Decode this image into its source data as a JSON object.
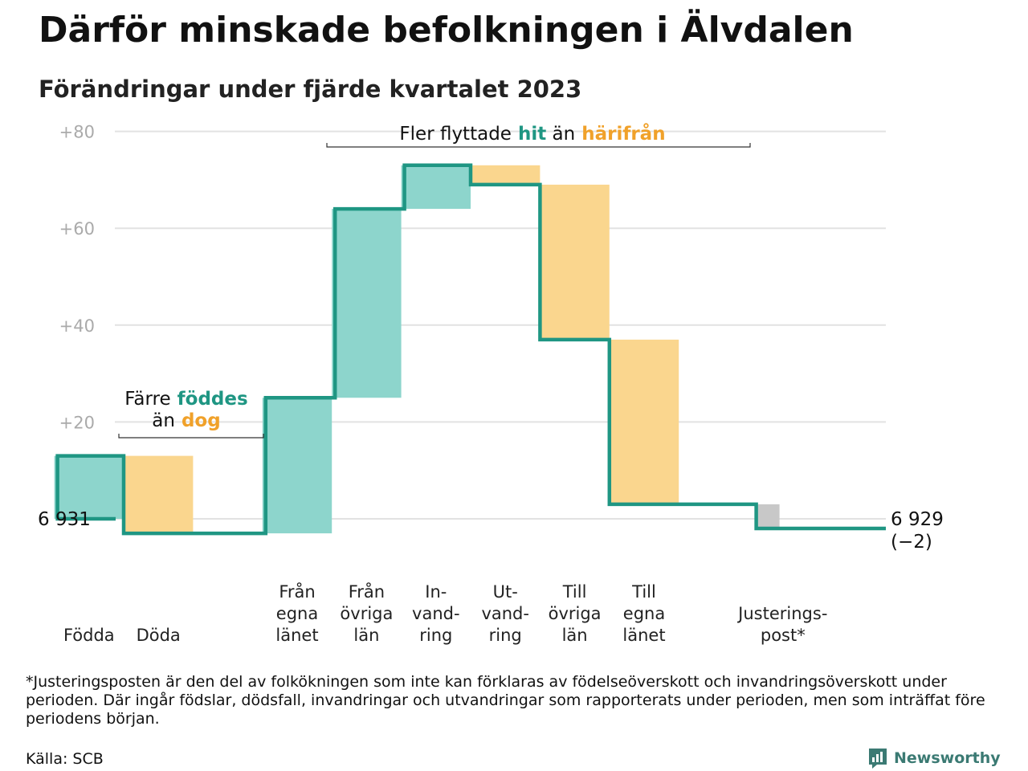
{
  "header": {
    "title": "Därför minskade befolkningen i Älvdalen",
    "subtitle": "Förändringar under fjärde kvartalet 2023"
  },
  "chart_data": {
    "type": "waterfall",
    "start_value": 6931,
    "start_label": "6  931",
    "end_value": 6929,
    "end_label": "6 929",
    "end_change_label": "(−2)",
    "ylim": [
      0,
      80
    ],
    "yticks": [
      {
        "value": 20,
        "label": "+20"
      },
      {
        "value": 40,
        "label": "+40"
      },
      {
        "value": 60,
        "label": "+60"
      },
      {
        "value": 80,
        "label": "+80"
      }
    ],
    "grid": true,
    "steps": [
      {
        "label_lines": [
          "Födda"
        ],
        "value": 13,
        "kind": "increase",
        "slot": 0
      },
      {
        "label_lines": [
          "Döda"
        ],
        "value": -16,
        "kind": "decrease",
        "slot": 1
      },
      {
        "label_lines": [
          "Från",
          "egna",
          "länet"
        ],
        "value": 28,
        "kind": "increase",
        "slot": 3
      },
      {
        "label_lines": [
          "Från",
          "övriga",
          "län"
        ],
        "value": 39,
        "kind": "increase",
        "slot": 4
      },
      {
        "label_lines": [
          "In-",
          "vand-",
          "ring"
        ],
        "value": 9,
        "kind": "increase",
        "slot": 5
      },
      {
        "label_lines": [
          "Ut-",
          "vand-",
          "ring"
        ],
        "value": -4,
        "kind": "decrease",
        "slot": 6
      },
      {
        "label_lines": [
          "Till",
          "övriga",
          "län"
        ],
        "value": -32,
        "kind": "decrease",
        "slot": 7
      },
      {
        "label_lines": [
          "Till",
          "egna",
          "länet"
        ],
        "value": -34,
        "kind": "decrease",
        "slot": 8
      },
      {
        "label_lines": [
          "Justerings-",
          "post*"
        ],
        "value": -5,
        "kind": "adjustment",
        "slot": 10
      }
    ],
    "annotations": [
      {
        "id": "births",
        "parts": [
          {
            "text": "Färre",
            "kind": "plain"
          },
          {
            "text": "föddes",
            "kind": "increase"
          },
          {
            "text": "än",
            "kind": "plain"
          },
          {
            "text": "dog",
            "kind": "decrease"
          }
        ]
      },
      {
        "id": "moves",
        "parts": [
          {
            "text": "Fler flyttade",
            "kind": "plain"
          },
          {
            "text": "hit",
            "kind": "increase"
          },
          {
            "text": "än",
            "kind": "plain"
          },
          {
            "text": "härifrån",
            "kind": "decrease"
          }
        ]
      }
    ],
    "colors": {
      "increase_fill": "#8dd5cc",
      "decrease_fill": "#fad68e",
      "adjustment_fill": "#c8c8c8",
      "line": "#1f9683",
      "increase_text": "#1f9683",
      "decrease_text": "#f0a12a",
      "grid": "#e2e2e2",
      "tick_text": "#aaaaaa"
    }
  },
  "footer": {
    "note": "*Justeringsposten är den del av folkökningen som inte kan förklaras av födelseöverskott och invandringsöverskott under perioden. Där ingår födslar, dödsfall, invandringar och utvandringar som rapporterats under perioden, men som inträffat före periodens början.",
    "source": "Källa: SCB",
    "brand": "Newsworthy"
  }
}
